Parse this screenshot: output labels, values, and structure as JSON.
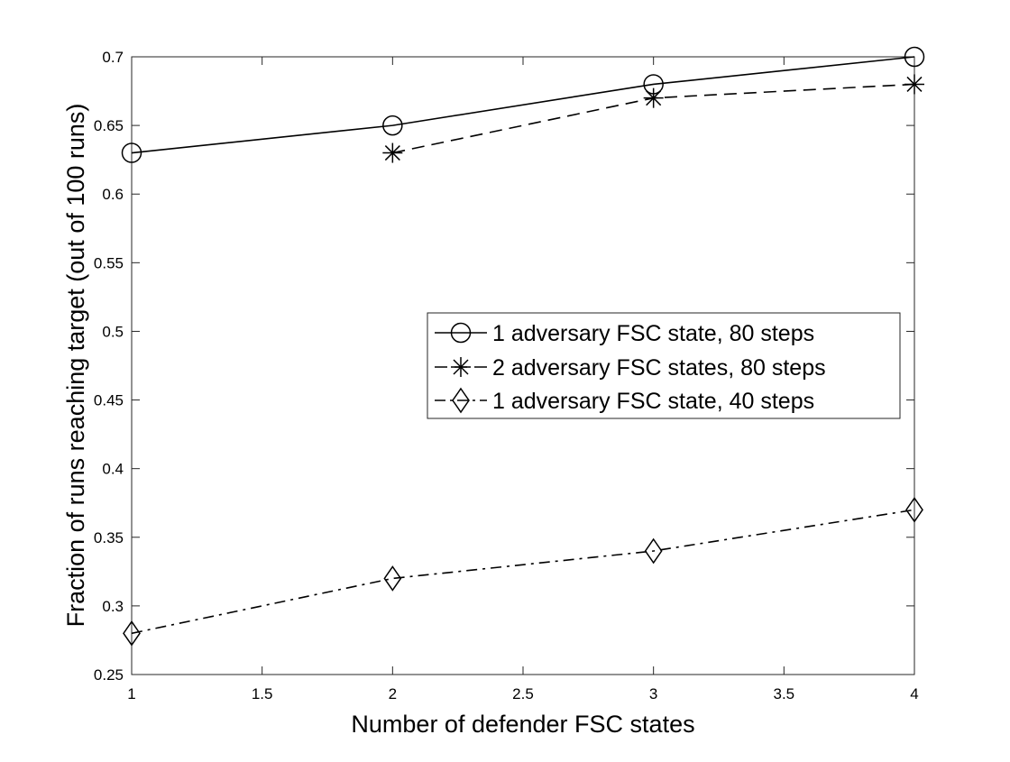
{
  "chart_data": {
    "type": "line",
    "title": "",
    "xlabel": "Number of defender FSC states",
    "ylabel": "Fraction of runs reaching target (out of 100 runs)",
    "xlim": [
      1,
      4
    ],
    "ylim": [
      0.25,
      0.7
    ],
    "xticks": [
      1,
      1.5,
      2,
      2.5,
      3,
      3.5,
      4
    ],
    "xtick_labels": [
      "1",
      "1.5",
      "2",
      "2.5",
      "3",
      "3.5",
      "4"
    ],
    "yticks": [
      0.25,
      0.3,
      0.35,
      0.4,
      0.45,
      0.5,
      0.55,
      0.6,
      0.65,
      0.7
    ],
    "ytick_labels": [
      "0.25",
      "0.3",
      "0.35",
      "0.4",
      "0.45",
      "0.5",
      "0.55",
      "0.6",
      "0.65",
      "0.7"
    ],
    "grid": false,
    "legend_position": "center-right",
    "series": [
      {
        "name": "1 adversary FSC state, 80 steps",
        "x": [
          1,
          2,
          3,
          4
        ],
        "y": [
          0.63,
          0.65,
          0.68,
          0.7
        ],
        "line_style": "solid",
        "marker": "circle",
        "color": "#000000"
      },
      {
        "name": "2 adversary FSC states, 80 steps",
        "x": [
          2,
          3,
          4
        ],
        "y": [
          0.63,
          0.67,
          0.68
        ],
        "line_style": "dashed",
        "marker": "asterisk",
        "color": "#000000"
      },
      {
        "name": "1 adversary FSC state, 40 steps",
        "x": [
          1,
          2,
          3,
          4
        ],
        "y": [
          0.28,
          0.32,
          0.34,
          0.37
        ],
        "line_style": "dashdot",
        "marker": "diamond",
        "color": "#000000"
      }
    ]
  }
}
